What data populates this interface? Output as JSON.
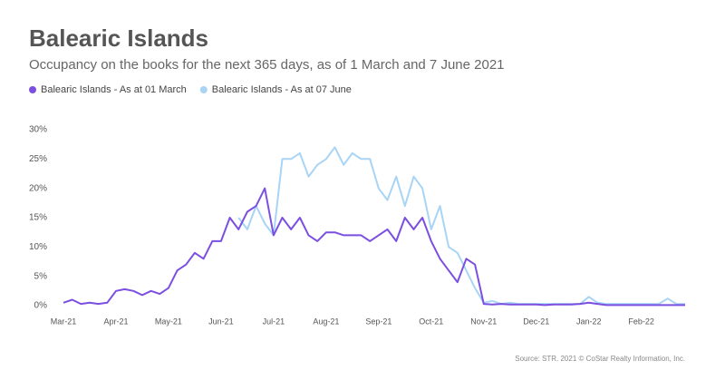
{
  "chart_data": {
    "type": "line",
    "title": "Balearic Islands",
    "subtitle": "Occupancy on the books for the next 365 days, as of 1 March and 7 June 2021",
    "source": "Source: STR. 2021 © CoStar Realty Information, Inc.",
    "legend": "top-left",
    "categories": [
      "Mar-21",
      null,
      null,
      null,
      null,
      null,
      "Apr-21",
      null,
      null,
      null,
      null,
      null,
      "May-21",
      null,
      null,
      null,
      null,
      null,
      "Jun-21",
      null,
      null,
      null,
      null,
      null,
      "Jul-21",
      null,
      null,
      null,
      null,
      null,
      "Aug-21",
      null,
      null,
      null,
      null,
      null,
      "Sep-21",
      null,
      null,
      null,
      null,
      null,
      "Oct-21",
      null,
      null,
      null,
      null,
      null,
      "Nov-21",
      null,
      null,
      null,
      null,
      null,
      "Dec-21",
      null,
      null,
      null,
      null,
      null,
      "Jan-22",
      null,
      null,
      null,
      null,
      null,
      "Feb-22",
      null,
      null,
      null,
      null,
      null
    ],
    "series": [
      {
        "name": "Balearic Islands - As at 01 March",
        "color": "#7b4fe0",
        "values": [
          0.5,
          1,
          0.3,
          0.5,
          0.3,
          0.5,
          2.5,
          2.8,
          2.5,
          1.8,
          2.5,
          2,
          3,
          6,
          7,
          9,
          8,
          11,
          11,
          15,
          13,
          16,
          17,
          20,
          12,
          15,
          13,
          15,
          12,
          11,
          12.5,
          12.5,
          12,
          12,
          12,
          11,
          12,
          13,
          11,
          15,
          13,
          15,
          11,
          8,
          6,
          4,
          8,
          7,
          0.3,
          0.2,
          0.3,
          0.2,
          0.2,
          0.2,
          0.2,
          0.1,
          0.2,
          0.2,
          0.2,
          0.3,
          0.5,
          0.3,
          0.1,
          0.1,
          0.1,
          0.1,
          0.1,
          0.1,
          0.1,
          0.1,
          0.1,
          0.1
        ]
      },
      {
        "name": "Balearic Islands - As at 07 June",
        "color": "#a8d4f5",
        "values": [
          null,
          null,
          null,
          null,
          null,
          null,
          null,
          null,
          null,
          null,
          null,
          null,
          null,
          null,
          null,
          null,
          null,
          null,
          null,
          null,
          15,
          13,
          17,
          14,
          12,
          25,
          25,
          26,
          22,
          24,
          25,
          27,
          24,
          26,
          25,
          25,
          20,
          18,
          22,
          17,
          22,
          20,
          13,
          17,
          10,
          9,
          6,
          3,
          0.5,
          0.8,
          0.3,
          0.5,
          0.3,
          0.3,
          0.3,
          0.3,
          0.3,
          0.3,
          0.3,
          0.3,
          1.5,
          0.5,
          0.3,
          0.3,
          0.3,
          0.3,
          0.3,
          0.3,
          0.3,
          1.2,
          0.3,
          0.3
        ]
      }
    ],
    "ylim": [
      0,
      30
    ],
    "yticks": [
      {
        "value": 0,
        "label": "0%"
      },
      {
        "value": 5,
        "label": "5%"
      },
      {
        "value": 10,
        "label": "10%"
      },
      {
        "value": 15,
        "label": "15%"
      },
      {
        "value": 20,
        "label": "20%"
      },
      {
        "value": 25,
        "label": "25%"
      },
      {
        "value": 30,
        "label": "30%"
      }
    ],
    "grid": false
  }
}
